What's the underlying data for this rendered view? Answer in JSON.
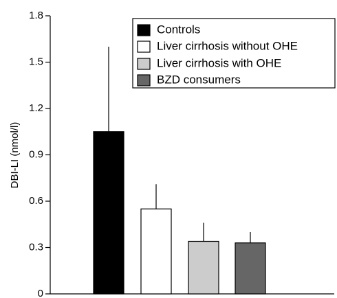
{
  "chart_data": {
    "type": "bar",
    "y_label": "DBI-LI (nmol/l)",
    "categories": [
      "Controls",
      "Liver cirrhosis without OHE",
      "Liver cirrhosis with OHE",
      "BZD consumers"
    ],
    "values": [
      1.05,
      0.55,
      0.34,
      0.33
    ],
    "errors": [
      0.55,
      0.16,
      0.12,
      0.07
    ],
    "colors": [
      "#000000",
      "#ffffff",
      "#cccccc",
      "#666666"
    ],
    "ylim": [
      0,
      1.8
    ],
    "yticks": [
      0,
      0.3,
      0.6,
      0.9,
      1.2,
      1.5,
      1.8
    ],
    "grid": false
  }
}
